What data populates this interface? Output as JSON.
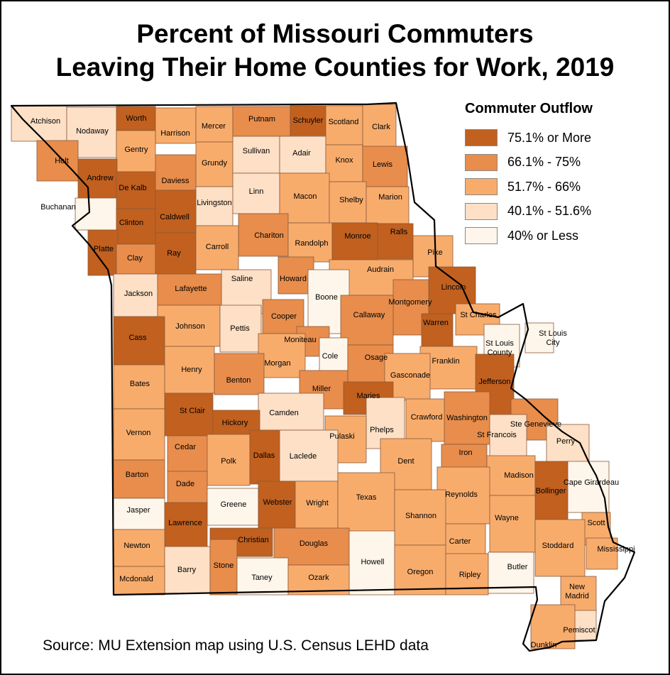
{
  "title_lines": [
    "Percent of Missouri Commuters",
    "Leaving Their Home Counties for Work, 2019"
  ],
  "legend": {
    "title": "Commuter Outflow",
    "items": [
      {
        "label": "75.1% or More",
        "color": "#c1601f"
      },
      {
        "label": "66.1% - 75%",
        "color": "#e88d4c"
      },
      {
        "label": "51.7% - 66%",
        "color": "#f8ac6c"
      },
      {
        "label": "40.1% - 51.6%",
        "color": "#fde0c6"
      },
      {
        "label": "40% or Less",
        "color": "#fef6ea"
      }
    ]
  },
  "source": "Source: MU Extension map using U.S. Census LEHD data",
  "counties": [
    {
      "name": "Atchison",
      "class": 4
    },
    {
      "name": "Nodaway",
      "class": 4
    },
    {
      "name": "Worth",
      "class": 1
    },
    {
      "name": "Harrison",
      "class": 3
    },
    {
      "name": "Mercer",
      "class": 3
    },
    {
      "name": "Putnam",
      "class": 2
    },
    {
      "name": "Schuyler",
      "class": 1
    },
    {
      "name": "Scotland",
      "class": 3
    },
    {
      "name": "Clark",
      "class": 3
    },
    {
      "name": "Holt",
      "class": 2
    },
    {
      "name": "Gentry",
      "class": 3
    },
    {
      "name": "Grundy",
      "class": 3
    },
    {
      "name": "Sullivan",
      "class": 4
    },
    {
      "name": "Adair",
      "class": 4
    },
    {
      "name": "Knox",
      "class": 3
    },
    {
      "name": "Lewis",
      "class": 2
    },
    {
      "name": "Andrew",
      "class": 1
    },
    {
      "name": "De Kalb",
      "class": 1
    },
    {
      "name": "Daviess",
      "class": 2
    },
    {
      "name": "Livingston",
      "class": 4
    },
    {
      "name": "Linn",
      "class": 4
    },
    {
      "name": "Macon",
      "class": 3
    },
    {
      "name": "Shelby",
      "class": 3
    },
    {
      "name": "Marion",
      "class": 3
    },
    {
      "name": "Buchanan",
      "class": 5
    },
    {
      "name": "Clinton",
      "class": 1
    },
    {
      "name": "Caldwell",
      "class": 1
    },
    {
      "name": "Chariton",
      "class": 2
    },
    {
      "name": "Randolph",
      "class": 3
    },
    {
      "name": "Monroe",
      "class": 1
    },
    {
      "name": "Ralls",
      "class": 1
    },
    {
      "name": "Platte",
      "class": 1
    },
    {
      "name": "Clay",
      "class": 2
    },
    {
      "name": "Ray",
      "class": 1
    },
    {
      "name": "Carroll",
      "class": 3
    },
    {
      "name": "Pike",
      "class": 3
    },
    {
      "name": "Saline",
      "class": 4
    },
    {
      "name": "Howard",
      "class": 2
    },
    {
      "name": "Audrain",
      "class": 3
    },
    {
      "name": "Boone",
      "class": 5
    },
    {
      "name": "Lincoln",
      "class": 1
    },
    {
      "name": "Jackson",
      "class": 4
    },
    {
      "name": "Lafayette",
      "class": 2
    },
    {
      "name": "Montgomery",
      "class": 2
    },
    {
      "name": "Callaway",
      "class": 2
    },
    {
      "name": "Cooper",
      "class": 2
    },
    {
      "name": "St Charles",
      "class": 3
    },
    {
      "name": "Johnson",
      "class": 3
    },
    {
      "name": "Pettis",
      "class": 4
    },
    {
      "name": "Warren",
      "class": 1
    },
    {
      "name": "St Louis City",
      "class": 5
    },
    {
      "name": "Moniteau",
      "class": 2
    },
    {
      "name": "St Louis County",
      "class": 5
    },
    {
      "name": "Cass",
      "class": 1
    },
    {
      "name": "Cole",
      "class": 5
    },
    {
      "name": "Osage",
      "class": 2
    },
    {
      "name": "Franklin",
      "class": 3
    },
    {
      "name": "Henry",
      "class": 3
    },
    {
      "name": "Morgan",
      "class": 3
    },
    {
      "name": "Gasconade",
      "class": 3
    },
    {
      "name": "Benton",
      "class": 2
    },
    {
      "name": "Miller",
      "class": 2
    },
    {
      "name": "Maries",
      "class": 1
    },
    {
      "name": "Jefferson",
      "class": 1
    },
    {
      "name": "Bates",
      "class": 3
    },
    {
      "name": "St Clair",
      "class": 1
    },
    {
      "name": "Camden",
      "class": 4
    },
    {
      "name": "Washington",
      "class": 2
    },
    {
      "name": "Crawford",
      "class": 3
    },
    {
      "name": "Ste Genevieve",
      "class": 2
    },
    {
      "name": "Hickory",
      "class": 1
    },
    {
      "name": "Phelps",
      "class": 4
    },
    {
      "name": "Pulaski",
      "class": 3
    },
    {
      "name": "St Francois",
      "class": 4
    },
    {
      "name": "Vernon",
      "class": 3
    },
    {
      "name": "Perry",
      "class": 4
    },
    {
      "name": "Cedar",
      "class": 2
    },
    {
      "name": "Polk",
      "class": 3
    },
    {
      "name": "Dallas",
      "class": 1
    },
    {
      "name": "Laclede",
      "class": 4
    },
    {
      "name": "Iron",
      "class": 2
    },
    {
      "name": "Dent",
      "class": 3
    },
    {
      "name": "Madison",
      "class": 3
    },
    {
      "name": "Cape Girardeau",
      "class": 5
    },
    {
      "name": "Barton",
      "class": 2
    },
    {
      "name": "Dade",
      "class": 2
    },
    {
      "name": "Reynolds",
      "class": 3
    },
    {
      "name": "Bollinger",
      "class": 1
    },
    {
      "name": "Jasper",
      "class": 5
    },
    {
      "name": "Greene",
      "class": 5
    },
    {
      "name": "Webster",
      "class": 1
    },
    {
      "name": "Wright",
      "class": 3
    },
    {
      "name": "Texas",
      "class": 3
    },
    {
      "name": "Shannon",
      "class": 3
    },
    {
      "name": "Wayne",
      "class": 3
    },
    {
      "name": "Scott",
      "class": 3
    },
    {
      "name": "Lawrence",
      "class": 1
    },
    {
      "name": "Christian",
      "class": 1
    },
    {
      "name": "Douglas",
      "class": 2
    },
    {
      "name": "Carter",
      "class": 3
    },
    {
      "name": "Stoddard",
      "class": 3
    },
    {
      "name": "Mississippi",
      "class": 3
    },
    {
      "name": "Newton",
      "class": 3
    },
    {
      "name": "Howell",
      "class": 5
    },
    {
      "name": "Barry",
      "class": 4
    },
    {
      "name": "Stone",
      "class": 2
    },
    {
      "name": "Taney",
      "class": 5
    },
    {
      "name": "Ozark",
      "class": 3
    },
    {
      "name": "Oregon",
      "class": 3
    },
    {
      "name": "Ripley",
      "class": 3
    },
    {
      "name": "Butler",
      "class": 5
    },
    {
      "name": "Mcdonald",
      "class": 3
    },
    {
      "name": "New Madrid",
      "class": 3
    },
    {
      "name": "Pemiscot",
      "class": 4
    },
    {
      "name": "Dunklin",
      "class": 3
    }
  ]
}
